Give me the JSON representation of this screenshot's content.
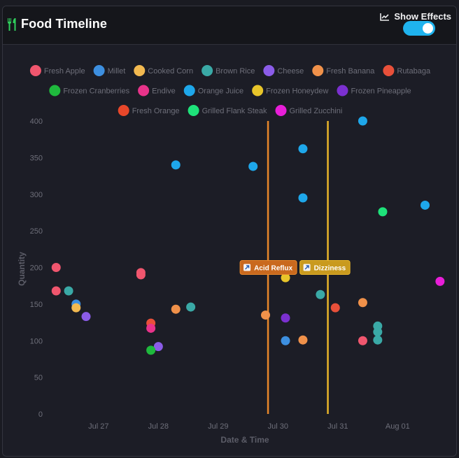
{
  "header": {
    "title": "Food Timeline",
    "title_icon": "fork-knife-icon",
    "effects_icon": "line-chart-icon",
    "effects_label": "Show Effects",
    "effects_enabled": true
  },
  "colors": {
    "accent": "#1fb3ee",
    "background": "#1c1d26",
    "title_icon": "#2fcf5c"
  },
  "chart_data": {
    "type": "scatter",
    "title": "",
    "xlabel": "Date & Time",
    "ylabel": "Quantity",
    "ylim": [
      0,
      400
    ],
    "yticks": [
      0,
      50,
      100,
      150,
      200,
      250,
      300,
      350,
      400
    ],
    "xlim": [
      "2024-07-26T03:00",
      "2024-08-01T19:00"
    ],
    "xticks": [
      {
        "label": "Jul 27",
        "t": "2024-07-27T00:00"
      },
      {
        "label": "Jul 28",
        "t": "2024-07-28T00:00"
      },
      {
        "label": "Jul 29",
        "t": "2024-07-29T00:00"
      },
      {
        "label": "Jul 30",
        "t": "2024-07-30T00:00"
      },
      {
        "label": "Jul 31",
        "t": "2024-07-31T00:00"
      },
      {
        "label": "Aug 01",
        "t": "2024-08-01T00:00"
      }
    ],
    "grid": false,
    "legend_position": "top",
    "series": [
      {
        "name": "Fresh Apple",
        "color": "#f0566e",
        "points": [
          {
            "x": "2024-07-26T07:00",
            "y": 200
          },
          {
            "x": "2024-07-26T07:00",
            "y": 168
          },
          {
            "x": "2024-07-27T17:00",
            "y": 193
          },
          {
            "x": "2024-07-27T17:00",
            "y": 190
          },
          {
            "x": "2024-07-31T10:00",
            "y": 100
          }
        ]
      },
      {
        "name": "Millet",
        "color": "#3d8fe0",
        "points": [
          {
            "x": "2024-07-26T15:00",
            "y": 150
          },
          {
            "x": "2024-07-30T03:00",
            "y": 100
          }
        ]
      },
      {
        "name": "Cooked Corn",
        "color": "#f2b950",
        "points": [
          {
            "x": "2024-07-26T15:00",
            "y": 145
          }
        ]
      },
      {
        "name": "Brown Rice",
        "color": "#3aa9a6",
        "points": [
          {
            "x": "2024-07-26T12:00",
            "y": 168
          },
          {
            "x": "2024-07-28T13:00",
            "y": 146
          },
          {
            "x": "2024-07-30T17:00",
            "y": 163
          },
          {
            "x": "2024-07-31T16:00",
            "y": 120
          },
          {
            "x": "2024-07-31T16:00",
            "y": 112
          },
          {
            "x": "2024-07-31T16:00",
            "y": 101
          }
        ]
      },
      {
        "name": "Cheese",
        "color": "#8b5ce8",
        "points": [
          {
            "x": "2024-07-26T19:00",
            "y": 133
          },
          {
            "x": "2024-07-28T00:00",
            "y": 92
          }
        ]
      },
      {
        "name": "Fresh Banana",
        "color": "#f0914a",
        "points": [
          {
            "x": "2024-07-28T07:00",
            "y": 143
          },
          {
            "x": "2024-07-29T19:00",
            "y": 135
          },
          {
            "x": "2024-07-30T10:00",
            "y": 101
          },
          {
            "x": "2024-07-31T10:00",
            "y": 152
          }
        ]
      },
      {
        "name": "Rutabaga",
        "color": "#e8503a",
        "points": [
          {
            "x": "2024-07-27T21:00",
            "y": 124
          },
          {
            "x": "2024-07-30T23:00",
            "y": 145
          }
        ]
      },
      {
        "name": "Frozen Cranberries",
        "color": "#1fb93d",
        "points": [
          {
            "x": "2024-07-27T21:00",
            "y": 87
          }
        ]
      },
      {
        "name": "Endive",
        "color": "#e8338a",
        "points": [
          {
            "x": "2024-07-27T21:00",
            "y": 117
          }
        ]
      },
      {
        "name": "Orange Juice",
        "color": "#1ea7ea",
        "points": [
          {
            "x": "2024-07-28T07:00",
            "y": 340
          },
          {
            "x": "2024-07-29T14:00",
            "y": 338
          },
          {
            "x": "2024-07-30T10:00",
            "y": 362
          },
          {
            "x": "2024-07-30T10:00",
            "y": 295
          },
          {
            "x": "2024-07-31T10:00",
            "y": 400
          },
          {
            "x": "2024-08-01T11:00",
            "y": 285
          }
        ]
      },
      {
        "name": "Frozen Honeydew",
        "color": "#e8c52a",
        "points": [
          {
            "x": "2024-07-30T03:00",
            "y": 186
          }
        ]
      },
      {
        "name": "Frozen Pineapple",
        "color": "#7b30d0",
        "points": [
          {
            "x": "2024-07-30T03:00",
            "y": 131
          }
        ]
      },
      {
        "name": "Fresh Orange",
        "color": "#e8472a",
        "points": []
      },
      {
        "name": "Grilled Flank Steak",
        "color": "#1ee27a",
        "points": [
          {
            "x": "2024-07-31T18:00",
            "y": 276
          }
        ]
      },
      {
        "name": "Grilled Zucchini",
        "color": "#e81ed8",
        "points": [
          {
            "x": "2024-08-01T17:00",
            "y": 181
          }
        ]
      }
    ],
    "annotations": [
      {
        "label": "Acid Reflux",
        "x": "2024-07-29T20:00",
        "color": "#e8872a",
        "box_color": "#c9691e",
        "icon": "external-arrow-icon"
      },
      {
        "label": "Dizziness",
        "x": "2024-07-30T20:00",
        "color": "#e8b42a",
        "box_color": "#c99a1e",
        "icon": "external-arrow-icon"
      }
    ]
  }
}
